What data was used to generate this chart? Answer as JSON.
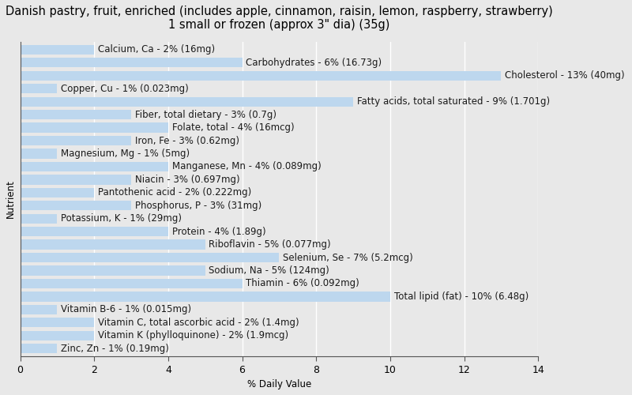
{
  "title": "Danish pastry, fruit, enriched (includes apple, cinnamon, raisin, lemon, raspberry, strawberry)\n1 small or frozen (approx 3\" dia) (35g)",
  "xlabel": "% Daily Value",
  "ylabel": "Nutrient",
  "nutrients": [
    "Calcium, Ca - 2% (16mg)",
    "Carbohydrates - 6% (16.73g)",
    "Cholesterol - 13% (40mg)",
    "Copper, Cu - 1% (0.023mg)",
    "Fatty acids, total saturated - 9% (1.701g)",
    "Fiber, total dietary - 3% (0.7g)",
    "Folate, total - 4% (16mcg)",
    "Iron, Fe - 3% (0.62mg)",
    "Magnesium, Mg - 1% (5mg)",
    "Manganese, Mn - 4% (0.089mg)",
    "Niacin - 3% (0.697mg)",
    "Pantothenic acid - 2% (0.222mg)",
    "Phosphorus, P - 3% (31mg)",
    "Potassium, K - 1% (29mg)",
    "Protein - 4% (1.89g)",
    "Riboflavin - 5% (0.077mg)",
    "Selenium, Se - 7% (5.2mcg)",
    "Sodium, Na - 5% (124mg)",
    "Thiamin - 6% (0.092mg)",
    "Total lipid (fat) - 10% (6.48g)",
    "Vitamin B-6 - 1% (0.015mg)",
    "Vitamin C, total ascorbic acid - 2% (1.4mg)",
    "Vitamin K (phylloquinone) - 2% (1.9mcg)",
    "Zinc, Zn - 1% (0.19mg)"
  ],
  "values": [
    2,
    6,
    13,
    1,
    9,
    3,
    4,
    3,
    1,
    4,
    3,
    2,
    3,
    1,
    4,
    5,
    7,
    5,
    6,
    10,
    1,
    2,
    2,
    1
  ],
  "bar_color": "#bdd7ee",
  "bg_color": "#e8e8e8",
  "plot_bg_color": "#e8e8e8",
  "text_color": "#1a1a1a",
  "xlim": [
    0,
    14
  ],
  "xticks": [
    0,
    2,
    4,
    6,
    8,
    10,
    12,
    14
  ],
  "title_fontsize": 10.5,
  "label_fontsize": 8.5,
  "tick_fontsize": 9,
  "bar_height": 0.75
}
